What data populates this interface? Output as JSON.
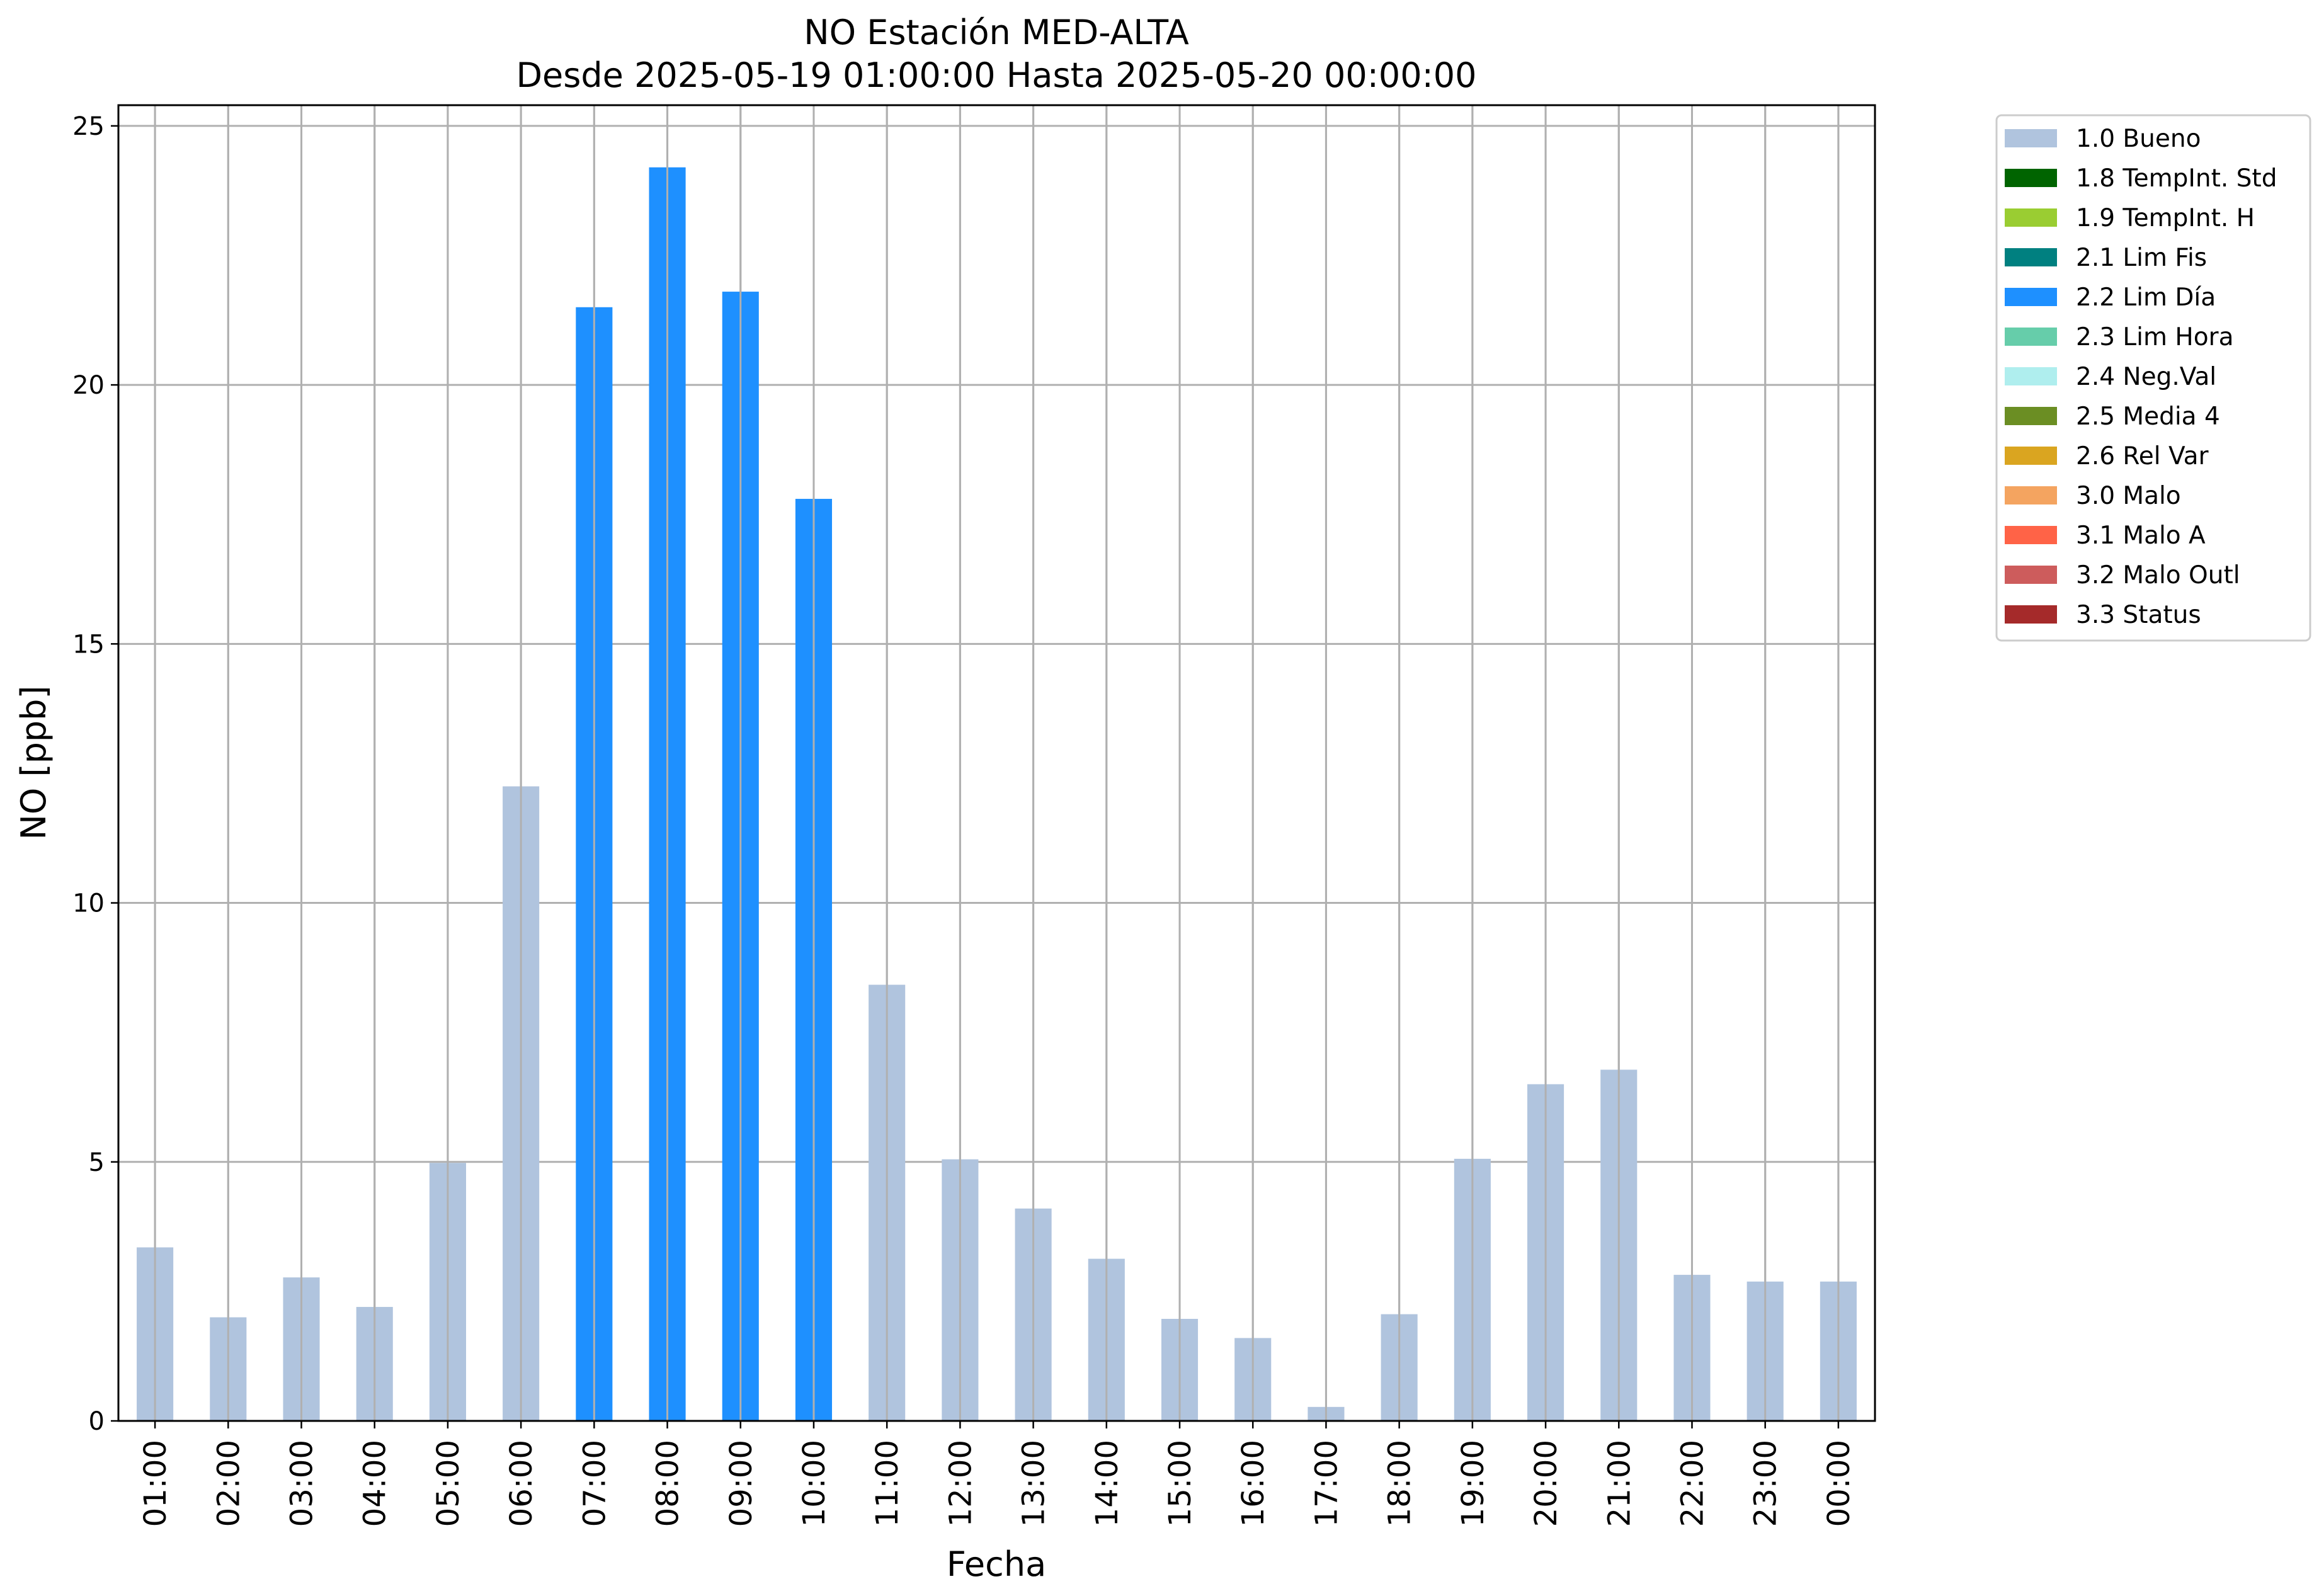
{
  "chart_data": {
    "type": "bar",
    "title": "NO Estación MED-ALTA",
    "subtitle": "Desde 2025-05-19 01:00:00 Hasta 2025-05-20 00:00:00",
    "xlabel": "Fecha",
    "ylabel": "NO [ppb]",
    "ylim": [
      0,
      25.4
    ],
    "yticks": [
      0,
      5,
      10,
      15,
      20,
      25
    ],
    "grid": true,
    "legend_position": "outside-top-right",
    "categories": [
      "01:00",
      "02:00",
      "03:00",
      "04:00",
      "05:00",
      "06:00",
      "07:00",
      "08:00",
      "09:00",
      "10:00",
      "11:00",
      "12:00",
      "13:00",
      "14:00",
      "15:00",
      "16:00",
      "17:00",
      "18:00",
      "19:00",
      "20:00",
      "21:00",
      "22:00",
      "23:00",
      "00:00"
    ],
    "values": [
      3.35,
      2.0,
      2.77,
      2.2,
      4.98,
      12.25,
      21.5,
      24.2,
      21.8,
      17.8,
      8.42,
      5.05,
      4.1,
      3.13,
      1.97,
      1.6,
      0.27,
      2.06,
      5.06,
      6.5,
      6.78,
      2.82,
      2.69,
      2.69
    ],
    "flags": [
      "1.0 Bueno",
      "1.0 Bueno",
      "1.0 Bueno",
      "1.0 Bueno",
      "1.0 Bueno",
      "1.0 Bueno",
      "2.2 Lim Día",
      "2.2 Lim Día",
      "2.2 Lim Día",
      "2.2 Lim Día",
      "1.0 Bueno",
      "1.0 Bueno",
      "1.0 Bueno",
      "1.0 Bueno",
      "1.0 Bueno",
      "1.0 Bueno",
      "1.0 Bueno",
      "1.0 Bueno",
      "1.0 Bueno",
      "1.0 Bueno",
      "1.0 Bueno",
      "1.0 Bueno",
      "1.0 Bueno",
      "1.0 Bueno"
    ],
    "legend": [
      {
        "label": "1.0 Bueno",
        "color": "#b0c4de"
      },
      {
        "label": "1.8 TempInt. Std",
        "color": "#006400"
      },
      {
        "label": "1.9 TempInt. H",
        "color": "#9acd32"
      },
      {
        "label": "2.1 Lim Fis",
        "color": "#008080"
      },
      {
        "label": "2.2 Lim Día",
        "color": "#1e90ff"
      },
      {
        "label": "2.3 Lim Hora",
        "color": "#66cdaa"
      },
      {
        "label": "2.4 Neg.Val",
        "color": "#afeeee"
      },
      {
        "label": "2.5 Media 4",
        "color": "#6b8e23"
      },
      {
        "label": "2.6 Rel Var",
        "color": "#daa520"
      },
      {
        "label": "3.0 Malo",
        "color": "#f4a460"
      },
      {
        "label": "3.1 Malo A",
        "color": "#ff6347"
      },
      {
        "label": "3.2 Malo Outl",
        "color": "#cd5c5c"
      },
      {
        "label": "3.3 Status",
        "color": "#a52a2a"
      }
    ]
  }
}
